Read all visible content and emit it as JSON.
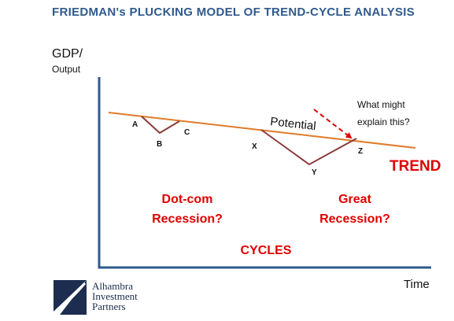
{
  "title": "FRIEDMAN's PLUCKING MODEL OF TREND-CYCLE ANALYSIS",
  "axes": {
    "y_label_main": "GDP/",
    "y_label_sub": "Output",
    "x_label": "Time"
  },
  "points": {
    "a": "A",
    "b": "B",
    "c": "C",
    "x": "X",
    "y": "Y",
    "z": "Z"
  },
  "potential_label": "Potential",
  "question": {
    "line1": "What might",
    "line2": "explain this?"
  },
  "trend_label": "TREND",
  "dotcom": {
    "line1": "Dot-com",
    "line2": "Recession?"
  },
  "great": {
    "line1": "Great",
    "line2": "Recession?"
  },
  "cycles_label": "CYCLES",
  "logo": {
    "line1": "Alhambra",
    "line2": "Investment",
    "line3": "Partners"
  },
  "colors": {
    "title": "#2f5a8c",
    "axis": "#2f5a8c",
    "trend_line": "#e07b2a",
    "cycle_line": "#8b3a3a",
    "emphasis": "#e00000",
    "logo_navy": "#1c2d4f"
  }
}
